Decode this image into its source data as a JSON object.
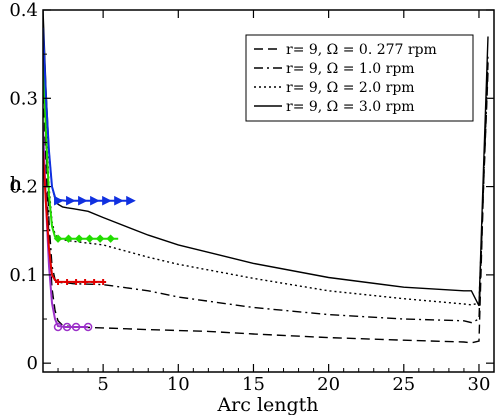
{
  "chart_data": {
    "type": "line",
    "title": "",
    "xlabel": "Arc length",
    "ylabel": "h",
    "xlim": [
      1,
      31
    ],
    "ylim": [
      -0.01,
      0.4
    ],
    "x_ticks": [
      5,
      10,
      15,
      20,
      25,
      30
    ],
    "x_tick_labels": [
      "5",
      "10",
      "15",
      "20",
      "25",
      "30"
    ],
    "y_ticks": [
      0,
      0.1,
      0.2,
      0.3,
      0.4
    ],
    "y_tick_labels": [
      "0",
      "0.1",
      "0.2",
      "0.3",
      "0.4"
    ],
    "grid": false,
    "legend_position": "top-right",
    "series": [
      {
        "name": "r=  9,  Ω = 0. 277 rpm",
        "style": "dashed",
        "color": "#000000",
        "x": [
          1.0,
          1.2,
          1.4,
          1.6,
          1.8,
          2.0,
          2.3,
          2.6,
          3.0,
          5.0,
          8.0,
          12.0,
          15.0,
          20.0,
          25.0,
          29.0,
          29.5,
          30.0,
          30.3,
          30.6
        ],
        "y": [
          0.32,
          0.22,
          0.14,
          0.085,
          0.06,
          0.048,
          0.043,
          0.042,
          0.041,
          0.04,
          0.038,
          0.036,
          0.033,
          0.029,
          0.026,
          0.024,
          0.023,
          0.025,
          0.2,
          0.33
        ]
      },
      {
        "name": "r=  9,  Ω = 1.0  rpm",
        "style": "dash-dot",
        "color": "#000000",
        "x": [
          1.0,
          1.2,
          1.4,
          1.6,
          1.8,
          2.0,
          2.3,
          2.6,
          3.0,
          5.0,
          8.0,
          10.0,
          15.0,
          20.0,
          25.0,
          29.0,
          29.5,
          30.0,
          30.3,
          30.6
        ],
        "y": [
          0.36,
          0.25,
          0.16,
          0.11,
          0.095,
          0.092,
          0.091,
          0.091,
          0.09,
          0.089,
          0.082,
          0.075,
          0.063,
          0.055,
          0.05,
          0.048,
          0.046,
          0.05,
          0.2,
          0.34
        ]
      },
      {
        "name": "r=  9,  Ω = 2.0  rpm",
        "style": "dotted",
        "color": "#000000",
        "x": [
          1.0,
          1.2,
          1.4,
          1.6,
          1.8,
          2.0,
          2.3,
          2.6,
          3.0,
          5.0,
          8.0,
          10.0,
          15.0,
          20.0,
          25.0,
          29.0,
          29.5,
          30.0,
          30.3,
          30.6
        ],
        "y": [
          0.37,
          0.28,
          0.2,
          0.16,
          0.146,
          0.142,
          0.14,
          0.139,
          0.138,
          0.134,
          0.12,
          0.112,
          0.096,
          0.082,
          0.073,
          0.067,
          0.066,
          0.068,
          0.2,
          0.35
        ]
      },
      {
        "name": "r=  9,  Ω = 3.0  rpm",
        "style": "solid",
        "color": "#000000",
        "x": [
          1.0,
          1.2,
          1.4,
          1.6,
          1.8,
          2.0,
          2.3,
          2.6,
          3.0,
          4.0,
          5.0,
          8.0,
          10.0,
          15.0,
          20.0,
          25.0,
          29.0,
          29.5,
          30.0,
          30.3,
          30.6
        ],
        "y": [
          0.4,
          0.31,
          0.24,
          0.2,
          0.186,
          0.18,
          0.177,
          0.176,
          0.175,
          0.172,
          0.165,
          0.145,
          0.134,
          0.113,
          0.097,
          0.086,
          0.082,
          0.082,
          0.065,
          0.22,
          0.37
        ]
      },
      {
        "name": "",
        "style": "marker-circle",
        "color": "#9b30c8",
        "x": [
          1.0,
          1.2,
          1.4,
          1.6,
          1.8,
          2.0,
          2.5,
          3.0,
          3.5,
          4.0
        ],
        "y": [
          0.27,
          0.18,
          0.11,
          0.068,
          0.05,
          0.042,
          0.041,
          0.041,
          0.041,
          0.041
        ],
        "markers_x": [
          2.0,
          2.6,
          3.2,
          4.0
        ],
        "markers_y": [
          0.041,
          0.041,
          0.041,
          0.041
        ]
      },
      {
        "name": "",
        "style": "marker-plus",
        "color": "#e00000",
        "x": [
          1.0,
          1.2,
          1.4,
          1.6,
          1.8,
          2.0,
          2.5,
          3.0,
          4.0,
          5.0
        ],
        "y": [
          0.24,
          0.18,
          0.13,
          0.1,
          0.094,
          0.092,
          0.092,
          0.092,
          0.092,
          0.092
        ],
        "markers_x": [
          2.0,
          2.6,
          3.2,
          3.8,
          4.4,
          5.0
        ],
        "markers_y": [
          0.092,
          0.092,
          0.092,
          0.092,
          0.092,
          0.092
        ]
      },
      {
        "name": "",
        "style": "marker-diamond",
        "color": "#22dd00",
        "x": [
          1.0,
          1.2,
          1.4,
          1.6,
          1.8,
          2.0,
          2.5,
          3.0,
          4.0,
          5.0,
          6.0
        ],
        "y": [
          0.35,
          0.26,
          0.19,
          0.155,
          0.143,
          0.141,
          0.141,
          0.141,
          0.141,
          0.141,
          0.141
        ],
        "markers_x": [
          2.0,
          2.7,
          3.4,
          4.1,
          4.8,
          5.5
        ],
        "markers_y": [
          0.141,
          0.141,
          0.141,
          0.141,
          0.141,
          0.141
        ]
      },
      {
        "name": "",
        "style": "marker-triangle",
        "color": "#1030e0",
        "x": [
          1.0,
          1.2,
          1.4,
          1.6,
          1.8,
          2.0,
          2.5,
          3.0,
          4.0,
          5.0,
          6.0,
          7.0
        ],
        "y": [
          0.38,
          0.3,
          0.24,
          0.2,
          0.188,
          0.185,
          0.184,
          0.184,
          0.184,
          0.184,
          0.184,
          0.184
        ],
        "markers_x": [
          2.0,
          2.8,
          3.6,
          4.4,
          5.2,
          6.0,
          6.8
        ],
        "markers_y": [
          0.184,
          0.184,
          0.184,
          0.184,
          0.184,
          0.184,
          0.184
        ]
      }
    ]
  }
}
